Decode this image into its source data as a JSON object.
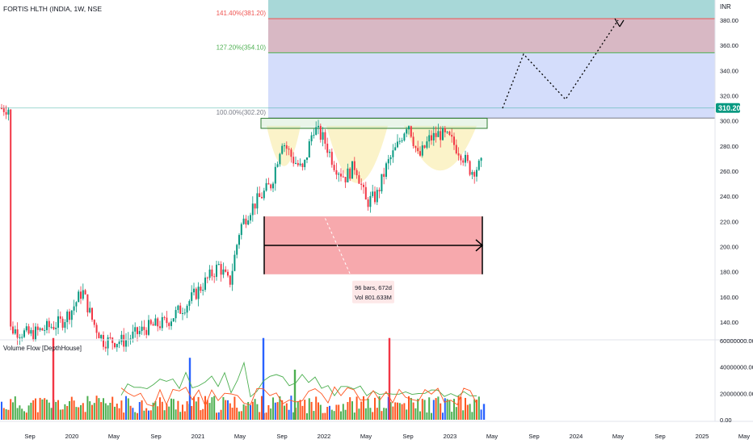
{
  "chart_data": {
    "type": "candlestick",
    "title": "FORTIS HLTH (INDIA, 1W, NSE",
    "currency": "INR",
    "last_price": "310.20",
    "y_axis": {
      "range": [
        130,
        390
      ],
      "ticks": [
        "140.00",
        "160.00",
        "180.00",
        "200.00",
        "220.00",
        "240.00",
        "260.00",
        "280.00",
        "300.00",
        "320.00",
        "340.00",
        "360.00",
        "380.00"
      ],
      "tick_values": [
        140,
        160,
        180,
        200,
        220,
        240,
        260,
        280,
        300,
        320,
        340,
        360,
        380
      ]
    },
    "x_axis": {
      "ticks": [
        "Sep",
        "2020",
        "May",
        "Sep",
        "2021",
        "May",
        "Sep",
        "2022",
        "May",
        "Sep",
        "2023",
        "May",
        "Sep",
        "2024",
        "May",
        "Sep",
        "2025",
        "May"
      ],
      "tick_dates": [
        "2019-09",
        "2020-01",
        "2020-05",
        "2020-09",
        "2021-01",
        "2021-05",
        "2021-09",
        "2022-01",
        "2022-05",
        "2022-09",
        "2023-01",
        "2023-05",
        "2023-09",
        "2024-01",
        "2024-05",
        "2024-09",
        "2025-01",
        "2025-05"
      ]
    },
    "price_series": [
      {
        "date": "2019-07",
        "close": 135
      },
      {
        "date": "2019-09",
        "close": 130
      },
      {
        "date": "2019-12",
        "close": 140
      },
      {
        "date": "2020-01",
        "close": 150
      },
      {
        "date": "2020-02",
        "close": 165
      },
      {
        "date": "2020-03",
        "close": 140
      },
      {
        "date": "2020-04",
        "close": 125
      },
      {
        "date": "2020-06",
        "close": 125
      },
      {
        "date": "2020-08",
        "close": 135
      },
      {
        "date": "2020-10",
        "close": 140
      },
      {
        "date": "2020-12",
        "close": 155
      },
      {
        "date": "2021-01",
        "close": 165
      },
      {
        "date": "2021-02",
        "close": 175
      },
      {
        "date": "2021-03",
        "close": 185
      },
      {
        "date": "2021-04",
        "close": 170
      },
      {
        "date": "2021-05",
        "close": 215
      },
      {
        "date": "2021-06",
        "close": 230
      },
      {
        "date": "2021-07",
        "close": 240
      },
      {
        "date": "2021-08",
        "close": 250
      },
      {
        "date": "2021-09",
        "close": 285
      },
      {
        "date": "2021-10",
        "close": 270
      },
      {
        "date": "2021-11",
        "close": 260
      },
      {
        "date": "2021-12",
        "close": 295
      },
      {
        "date": "2022-01",
        "close": 285
      },
      {
        "date": "2022-02",
        "close": 265
      },
      {
        "date": "2022-03",
        "close": 255
      },
      {
        "date": "2022-04",
        "close": 265
      },
      {
        "date": "2022-05",
        "close": 235
      },
      {
        "date": "2022-06",
        "close": 240
      },
      {
        "date": "2022-07",
        "close": 265
      },
      {
        "date": "2022-08",
        "close": 280
      },
      {
        "date": "2022-09",
        "close": 300
      },
      {
        "date": "2022-10",
        "close": 270
      },
      {
        "date": "2022-11",
        "close": 285
      },
      {
        "date": "2022-12",
        "close": 290
      },
      {
        "date": "2023-01",
        "close": 285
      },
      {
        "date": "2023-02",
        "close": 275
      },
      {
        "date": "2023-03",
        "close": 260
      },
      {
        "date": "2023-04",
        "close": 265
      },
      {
        "date": "2023-05",
        "close": 285
      },
      {
        "date": "2023-06",
        "close": 310
      }
    ],
    "volume_series": [
      {
        "date": "2020-01",
        "value": 62000000
      },
      {
        "date": "2021-02",
        "value": 47000000
      },
      {
        "date": "2021-09",
        "value": 62000000
      },
      {
        "date": "2021-12",
        "value": 38000000
      },
      {
        "date": "2022-09",
        "value": 62000000
      },
      {
        "date": "2023-06",
        "value": 12000000
      }
    ],
    "volume_axis": {
      "ticks": [
        "60000000.00",
        "40000000.00",
        "20000000.00",
        "0.00"
      ],
      "tick_values": [
        60000000,
        40000000,
        20000000,
        0
      ]
    },
    "indicator_label": "Volume Flow [DepthHouse]",
    "fib_levels": [
      {
        "label": "141.40%(381.20)",
        "value": 381.2,
        "color": "#ef5350"
      },
      {
        "label": "127.20%(354.10)",
        "value": 354.1,
        "color": "#4caf50"
      },
      {
        "label": "100.00%(302.20)",
        "value": 302.2,
        "color": "#787b86"
      }
    ],
    "measure_label": [
      "96 bars, 672d",
      "Vol 801.633M"
    ],
    "projection": [
      {
        "date": "2023-06",
        "value": 310
      },
      {
        "date": "2023-08",
        "value": 353
      },
      {
        "date": "2023-12",
        "value": 317
      },
      {
        "date": "2024-05",
        "value": 380
      }
    ]
  }
}
